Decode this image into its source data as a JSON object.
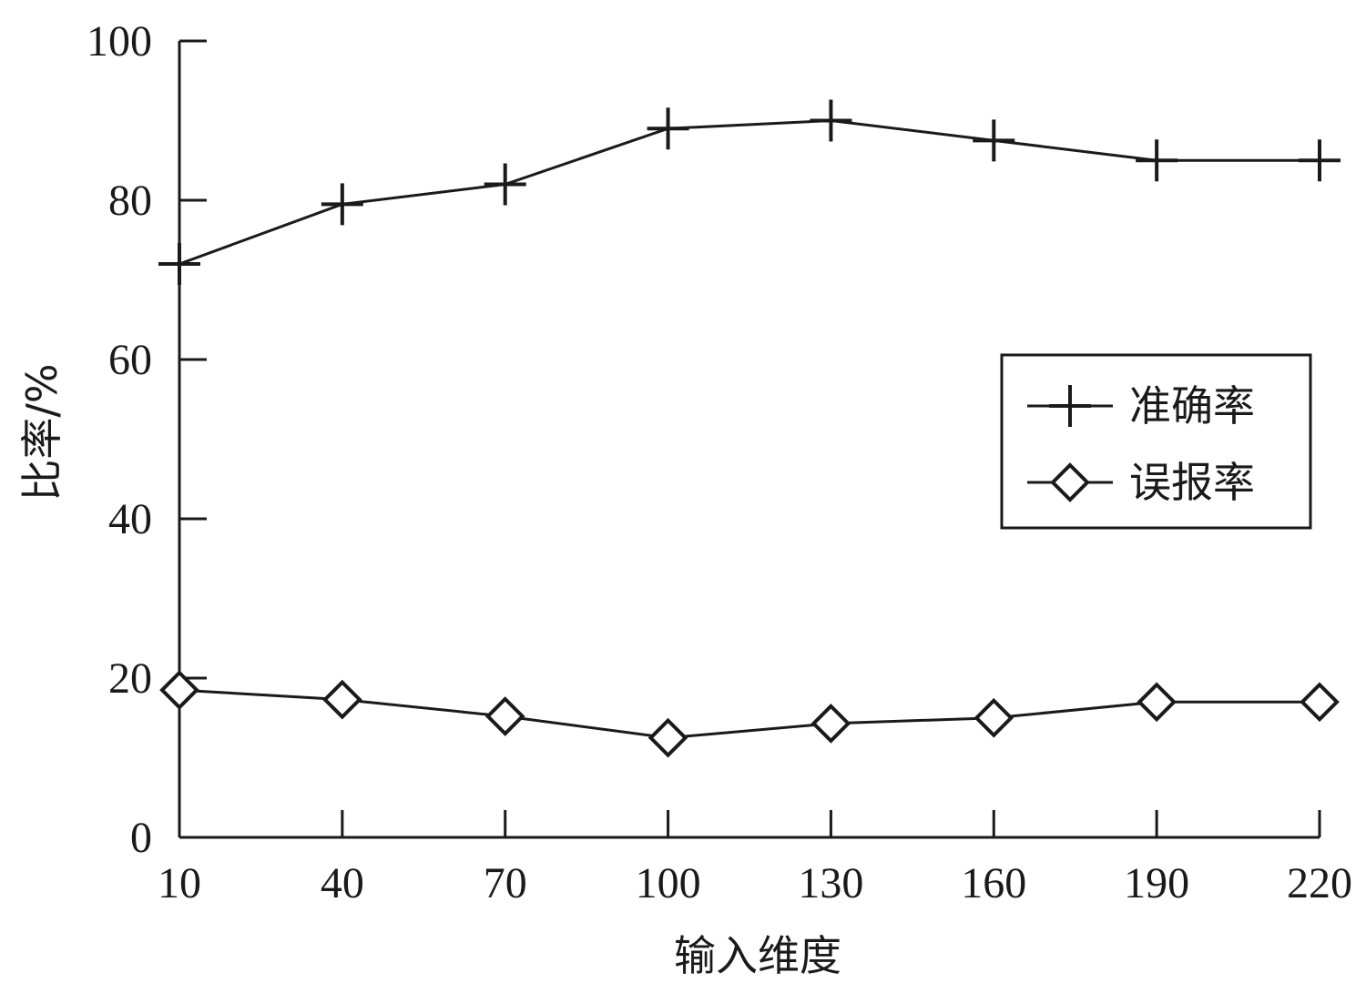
{
  "chart_data": {
    "type": "line",
    "title": "",
    "xlabel": "输入维度",
    "ylabel": "比率/%",
    "x": [
      10,
      40,
      70,
      100,
      130,
      160,
      190,
      220
    ],
    "xlim": [
      10,
      220
    ],
    "ylim": [
      0,
      100
    ],
    "xticks": [
      "10",
      "40",
      "70",
      "100",
      "130",
      "160",
      "190",
      "220"
    ],
    "yticks": [
      "0",
      "20",
      "40",
      "60",
      "80",
      "100"
    ],
    "grid": false,
    "legend_position": "right-middle",
    "series": [
      {
        "name": "准确率",
        "marker": "plus-icon",
        "values": [
          72,
          79.5,
          82,
          89,
          90,
          87.5,
          85,
          85
        ]
      },
      {
        "name": "误报率",
        "marker": "diamond-icon",
        "values": [
          18.5,
          17.3,
          15.2,
          12.5,
          14.3,
          15,
          17,
          17
        ]
      }
    ]
  }
}
